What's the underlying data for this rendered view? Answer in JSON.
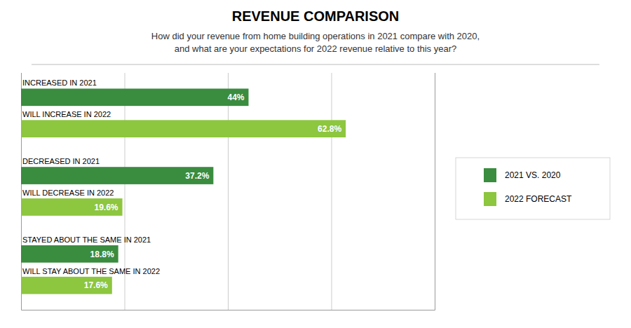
{
  "chart_data": {
    "type": "bar",
    "orientation": "horizontal",
    "title": "REVENUE COMPARISON",
    "subtitle": "How did your revenue from home building operations in 2021 compare with 2020,\nand what are your expectations for 2022 revenue relative to this year?",
    "categories": [
      "INCREASED IN 2021",
      "WILL INCREASE IN 2022",
      "DECREASED IN 2021",
      "WILL DECREASE IN 2022",
      "STAYED ABOUT THE SAME IN 2021",
      "WILL STAY ABOUT THE SAME IN 2022"
    ],
    "series": [
      {
        "name": "2021 VS. 2020",
        "color": "#3a8c3f",
        "values": [
          44.0,
          null,
          37.2,
          null,
          18.8,
          null
        ],
        "value_labels": [
          "44%",
          null,
          "37.2%",
          null,
          "18.8%",
          null
        ]
      },
      {
        "name": "2022 FORECAST",
        "color": "#8dc63f",
        "values": [
          null,
          62.8,
          null,
          19.6,
          null,
          17.6
        ],
        "value_labels": [
          null,
          "62.8%",
          null,
          "19.6%",
          null,
          "17.6%"
        ]
      }
    ],
    "xlim": [
      0,
      80
    ],
    "xticks": [
      20,
      40,
      60
    ],
    "grid": true,
    "tick_labels": "y",
    "data_labels": true,
    "legend": "right"
  }
}
